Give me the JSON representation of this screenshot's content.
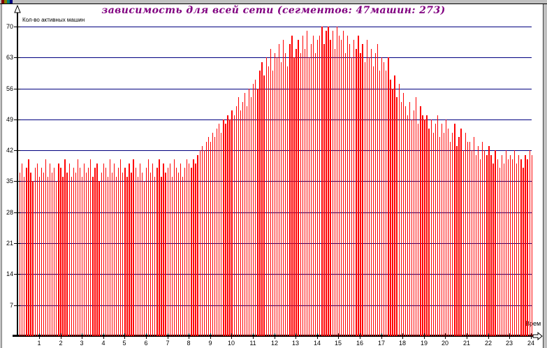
{
  "window": {
    "top_fragment_colors": [
      "#800000",
      "#808000",
      "#008080",
      "#000080",
      "#c0c0c0"
    ]
  },
  "chart_data": {
    "type": "bar",
    "title": "зависимость для всей сети (сегментов: 47машин: 273)",
    "ylabel": "Кол-во активных машин",
    "xlabel": "Врем",
    "title_color": "#800080",
    "bar_color": "#ff0000",
    "grid_color": "#000080",
    "axis_color": "#000000",
    "ylim": [
      0,
      72
    ],
    "y_ticks": [
      7,
      14,
      21,
      28,
      35,
      42,
      49,
      56,
      63,
      70
    ],
    "x_ticks": [
      1,
      2,
      3,
      4,
      5,
      6,
      7,
      8,
      9,
      10,
      11,
      12,
      13,
      14,
      15,
      16,
      17,
      18,
      19,
      20,
      21,
      22,
      23,
      24
    ],
    "bars_per_hour": 10,
    "legend": "none",
    "grid": "horizontal",
    "bars": [
      37,
      39,
      36,
      38,
      40,
      37,
      35,
      38,
      39,
      36,
      38,
      37,
      40,
      36,
      39,
      37,
      38,
      35,
      39,
      38,
      36,
      40,
      37,
      39,
      36,
      38,
      37,
      40,
      38,
      36,
      39,
      37,
      38,
      40,
      36,
      38,
      39,
      35,
      37,
      39,
      38,
      36,
      40,
      37,
      39,
      36,
      38,
      40,
      37,
      38,
      36,
      39,
      37,
      40,
      38,
      36,
      39,
      37,
      35,
      38,
      40,
      37,
      39,
      36,
      38,
      40,
      36,
      39,
      37,
      38,
      39,
      36,
      40,
      38,
      37,
      39,
      36,
      38,
      40,
      39,
      38,
      40,
      39,
      41,
      42,
      43,
      42,
      44,
      45,
      44,
      46,
      45,
      47,
      48,
      46,
      49,
      48,
      50,
      49,
      51,
      50,
      52,
      54,
      51,
      53,
      55,
      52,
      56,
      54,
      57,
      58,
      56,
      60,
      62,
      59,
      63,
      61,
      65,
      60,
      64,
      63,
      66,
      62,
      67,
      64,
      61,
      66,
      68,
      63,
      65,
      67,
      64,
      68,
      65,
      69,
      63,
      66,
      68,
      64,
      67,
      68,
      70,
      66,
      69,
      70,
      67,
      69,
      65,
      70,
      68,
      67,
      69,
      64,
      68,
      66,
      63,
      67,
      65,
      68,
      64,
      66,
      62,
      67,
      63,
      65,
      61,
      64,
      66,
      60,
      63,
      62,
      60,
      63,
      58,
      56,
      59,
      54,
      57,
      53,
      55,
      52,
      50,
      53,
      49,
      51,
      54,
      48,
      52,
      50,
      49,
      50,
      47,
      49,
      46,
      48,
      50,
      45,
      48,
      46,
      49,
      47,
      44,
      46,
      48,
      43,
      45,
      47,
      42,
      46,
      44,
      44,
      42,
      45,
      41,
      43,
      40,
      44,
      42,
      41,
      43,
      41,
      39,
      42,
      40,
      38,
      41,
      39,
      42,
      40,
      41,
      40,
      42,
      39,
      41,
      40,
      38,
      41,
      40,
      42,
      41
    ]
  }
}
